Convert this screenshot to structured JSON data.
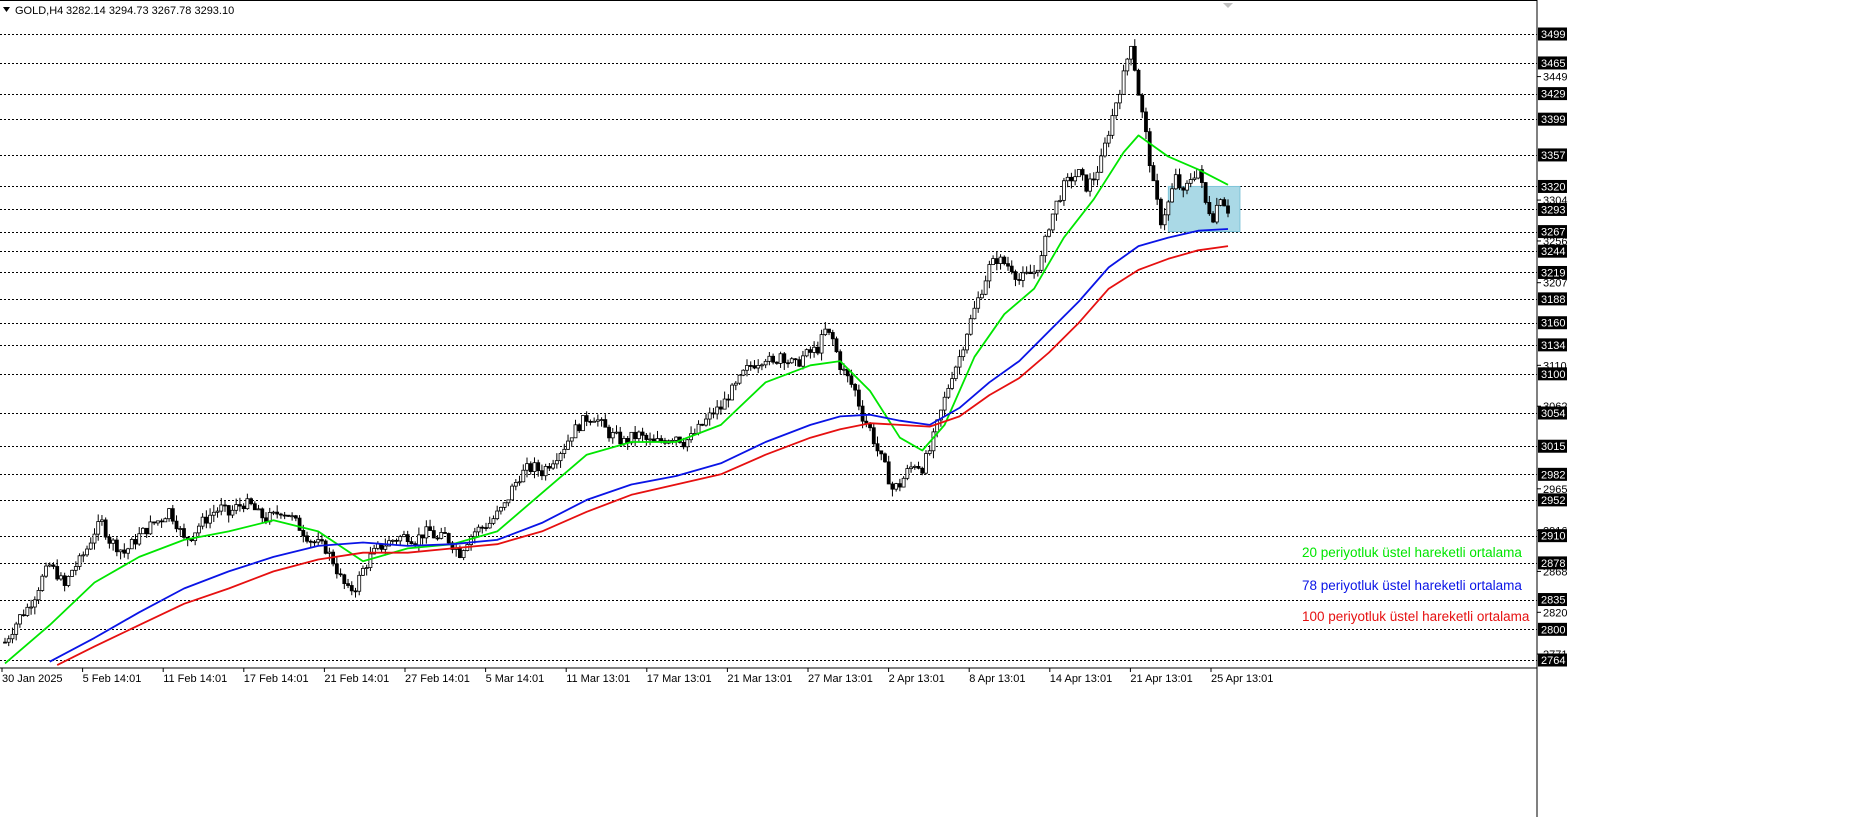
{
  "header": {
    "symbol": "GOLD,H4",
    "ohlc": "3282.14 3294.73 3267.78 3293.10"
  },
  "legend": [
    {
      "label": "20 periyotluk üstel hareketli ortalama",
      "color": "#00e600"
    },
    {
      "label": "78 periyotluk üstel hareketli ortalama",
      "color": "#0a14e6"
    },
    {
      "label": "100 periyotluk üstel hareketli ortalama",
      "color": "#e61010"
    }
  ],
  "colors": {
    "candle": "#000000",
    "hline": "#000000",
    "zone_fill": "#aad9e6",
    "zone_stroke": "#7fc4d8",
    "label_bg": "#000000",
    "label_text": "#ffffff"
  },
  "chart_data": {
    "type": "candlestick",
    "symbol": "GOLD",
    "timeframe": "H4",
    "ylim": [
      2758,
      3504
    ],
    "grid": false,
    "price_labels_highlighted": [
      3499,
      3465,
      3429,
      3399,
      3357,
      3320,
      3293,
      3267,
      3244,
      3219,
      3188,
      3160,
      3134,
      3100,
      3054,
      3015,
      2982,
      2952,
      2910,
      2878,
      2835,
      2800,
      2764
    ],
    "price_labels_plain": [
      3449,
      3304,
      3256,
      3207,
      3110,
      3062,
      2965,
      2916,
      2868,
      2820,
      2771
    ],
    "horizontal_levels": [
      3499,
      3465,
      3429,
      3399,
      3357,
      3320,
      3293,
      3267,
      3244,
      3219,
      3188,
      3160,
      3134,
      3100,
      3054,
      3015,
      2982,
      2952,
      2910,
      2878,
      2835,
      2800,
      2764
    ],
    "x_tick_labels": [
      "30 Jan 2025",
      "5 Feb 14:01",
      "11 Feb 14:01",
      "17 Feb 14:01",
      "21 Feb 14:01",
      "27 Feb 14:01",
      "5 Mar 14:01",
      "11 Mar 13:01",
      "17 Mar 13:01",
      "21 Mar 13:01",
      "27 Mar 13:01",
      "2 Apr 13:01",
      "8 Apr 13:01",
      "14 Apr 13:01",
      "21 Apr 13:01",
      "25 Apr 13:01"
    ],
    "close_path": [
      [
        0,
        2785
      ],
      [
        0.5,
        2800
      ],
      [
        1,
        2815
      ],
      [
        1.5,
        2825
      ],
      [
        2,
        2840
      ],
      [
        2.5,
        2860
      ],
      [
        3,
        2875
      ],
      [
        3.5,
        2865
      ],
      [
        4,
        2850
      ],
      [
        4.5,
        2870
      ],
      [
        5,
        2880
      ],
      [
        5.5,
        2895
      ],
      [
        6,
        2915
      ],
      [
        6.5,
        2925
      ],
      [
        7,
        2905
      ],
      [
        7.5,
        2898
      ],
      [
        8,
        2890
      ],
      [
        8.5,
        2900
      ],
      [
        9,
        2910
      ],
      [
        9.5,
        2918
      ],
      [
        10,
        2925
      ],
      [
        10.5,
        2930
      ],
      [
        11,
        2940
      ],
      [
        11.5,
        2925
      ],
      [
        12,
        2905
      ],
      [
        12.5,
        2910
      ],
      [
        13,
        2922
      ],
      [
        13.5,
        2930
      ],
      [
        14,
        2938
      ],
      [
        14.5,
        2942
      ],
      [
        15,
        2935
      ],
      [
        15.5,
        2943
      ],
      [
        16,
        2948
      ],
      [
        16.5,
        2945
      ],
      [
        17,
        2935
      ],
      [
        17.5,
        2930
      ],
      [
        18,
        2933
      ],
      [
        18.5,
        2940
      ],
      [
        19,
        2935
      ],
      [
        19.5,
        2925
      ],
      [
        20,
        2915
      ],
      [
        20.5,
        2905
      ],
      [
        21,
        2900
      ],
      [
        21.5,
        2895
      ],
      [
        22,
        2880
      ],
      [
        22.5,
        2860
      ],
      [
        23,
        2845
      ],
      [
        23.5,
        2850
      ],
      [
        24,
        2870
      ],
      [
        24.5,
        2885
      ],
      [
        25,
        2895
      ],
      [
        25.5,
        2900
      ],
      [
        26,
        2905
      ],
      [
        26.5,
        2908
      ],
      [
        27,
        2910
      ],
      [
        27.5,
        2905
      ],
      [
        28,
        2912
      ],
      [
        28.5,
        2915
      ],
      [
        29,
        2905
      ],
      [
        29.5,
        2910
      ],
      [
        30,
        2900
      ],
      [
        30.5,
        2890
      ],
      [
        31,
        2905
      ],
      [
        31.5,
        2915
      ],
      [
        32,
        2920
      ],
      [
        32.5,
        2925
      ],
      [
        33,
        2935
      ],
      [
        33.5,
        2945
      ],
      [
        34,
        2965
      ],
      [
        34.5,
        2980
      ],
      [
        35,
        2988
      ],
      [
        35.5,
        2990
      ],
      [
        36,
        2985
      ],
      [
        36.5,
        2995
      ],
      [
        37,
        3005
      ],
      [
        37.5,
        3015
      ],
      [
        38,
        3030
      ],
      [
        38.5,
        3040
      ],
      [
        39,
        3048
      ],
      [
        39.5,
        3050
      ],
      [
        40,
        3040
      ],
      [
        40.5,
        3030
      ],
      [
        41,
        3025
      ],
      [
        41.5,
        3020
      ],
      [
        42,
        3025
      ],
      [
        42.5,
        3028
      ],
      [
        43,
        3022
      ],
      [
        43.5,
        3018
      ],
      [
        44,
        3022
      ],
      [
        44.5,
        3025
      ],
      [
        45,
        3028
      ],
      [
        45.5,
        3020
      ],
      [
        46,
        3025
      ],
      [
        46.5,
        3035
      ],
      [
        47,
        3045
      ],
      [
        47.5,
        3055
      ],
      [
        48,
        3060
      ],
      [
        48.5,
        3075
      ],
      [
        49,
        3085
      ],
      [
        49.5,
        3100
      ],
      [
        50,
        3110
      ],
      [
        50.5,
        3115
      ],
      [
        51,
        3120
      ],
      [
        51.5,
        3110
      ],
      [
        52,
        3125
      ],
      [
        52.5,
        3115
      ],
      [
        53,
        3110
      ],
      [
        53.5,
        3120
      ],
      [
        54,
        3125
      ],
      [
        54.5,
        3130
      ],
      [
        55,
        3150
      ],
      [
        55.5,
        3140
      ],
      [
        56,
        3110
      ],
      [
        56.5,
        3095
      ],
      [
        57,
        3080
      ],
      [
        57.5,
        3050
      ],
      [
        58,
        3035
      ],
      [
        58.5,
        3010
      ],
      [
        59,
        2990
      ],
      [
        59.5,
        2965
      ],
      [
        60,
        2970
      ],
      [
        60.5,
        2985
      ],
      [
        61,
        2995
      ],
      [
        61.5,
        2990
      ],
      [
        62,
        3010
      ],
      [
        62.5,
        3040
      ],
      [
        63,
        3070
      ],
      [
        63.5,
        3100
      ],
      [
        64,
        3120
      ],
      [
        64.5,
        3150
      ],
      [
        65,
        3175
      ],
      [
        65.5,
        3200
      ],
      [
        66,
        3225
      ],
      [
        66.5,
        3235
      ],
      [
        67,
        3230
      ],
      [
        67.5,
        3225
      ],
      [
        68,
        3210
      ],
      [
        68.5,
        3215
      ],
      [
        69,
        3220
      ],
      [
        69.5,
        3235
      ],
      [
        70,
        3275
      ],
      [
        70.5,
        3300
      ],
      [
        71,
        3320
      ],
      [
        71.5,
        3330
      ],
      [
        72,
        3335
      ],
      [
        72.5,
        3320
      ],
      [
        73,
        3330
      ],
      [
        73.5,
        3350
      ],
      [
        74,
        3385
      ],
      [
        74.5,
        3420
      ],
      [
        75,
        3450
      ],
      [
        75.5,
        3490
      ],
      [
        76,
        3430
      ],
      [
        76.5,
        3380
      ],
      [
        77,
        3320
      ],
      [
        77.5,
        3280
      ],
      [
        78,
        3300
      ],
      [
        78.5,
        3330
      ],
      [
        79,
        3310
      ],
      [
        79.5,
        3330
      ],
      [
        80,
        3340
      ],
      [
        80.5,
        3300
      ],
      [
        81,
        3285
      ],
      [
        81.5,
        3310
      ],
      [
        82,
        3293
      ]
    ],
    "series": [
      {
        "name": "20 periyotluk üstel hareketli ortalama",
        "color": "#00e600",
        "points": [
          [
            0,
            2760
          ],
          [
            3,
            2805
          ],
          [
            6,
            2855
          ],
          [
            9,
            2885
          ],
          [
            12,
            2905
          ],
          [
            15,
            2915
          ],
          [
            18,
            2928
          ],
          [
            21,
            2915
          ],
          [
            24,
            2880
          ],
          [
            27,
            2895
          ],
          [
            30,
            2900
          ],
          [
            33,
            2915
          ],
          [
            36,
            2960
          ],
          [
            39,
            3005
          ],
          [
            42,
            3020
          ],
          [
            45,
            3020
          ],
          [
            48,
            3040
          ],
          [
            51,
            3090
          ],
          [
            54,
            3110
          ],
          [
            56,
            3115
          ],
          [
            58,
            3080
          ],
          [
            60,
            3025
          ],
          [
            61.5,
            3010
          ],
          [
            63,
            3040
          ],
          [
            65,
            3120
          ],
          [
            67,
            3170
          ],
          [
            69,
            3200
          ],
          [
            71,
            3260
          ],
          [
            73,
            3305
          ],
          [
            75,
            3360
          ],
          [
            76,
            3380
          ],
          [
            78,
            3355
          ],
          [
            80,
            3340
          ],
          [
            82,
            3322
          ]
        ]
      },
      {
        "name": "78 periyotluk üstel hareketli ortalama",
        "color": "#0a14e6",
        "points": [
          [
            3,
            2762
          ],
          [
            6,
            2790
          ],
          [
            9,
            2820
          ],
          [
            12,
            2848
          ],
          [
            15,
            2868
          ],
          [
            18,
            2885
          ],
          [
            21,
            2898
          ],
          [
            24,
            2902
          ],
          [
            27,
            2898
          ],
          [
            30,
            2900
          ],
          [
            33,
            2905
          ],
          [
            36,
            2925
          ],
          [
            39,
            2952
          ],
          [
            42,
            2970
          ],
          [
            45,
            2980
          ],
          [
            48,
            2995
          ],
          [
            51,
            3020
          ],
          [
            54,
            3040
          ],
          [
            56,
            3050
          ],
          [
            58,
            3052
          ],
          [
            60,
            3045
          ],
          [
            62,
            3040
          ],
          [
            64,
            3060
          ],
          [
            66,
            3090
          ],
          [
            68,
            3115
          ],
          [
            70,
            3150
          ],
          [
            72,
            3185
          ],
          [
            74,
            3225
          ],
          [
            76,
            3250
          ],
          [
            78,
            3260
          ],
          [
            80,
            3268
          ],
          [
            82,
            3270
          ]
        ]
      },
      {
        "name": "100 periyotluk üstel hareketli ortalama",
        "color": "#e61010",
        "points": [
          [
            3.5,
            2758
          ],
          [
            6,
            2780
          ],
          [
            9,
            2805
          ],
          [
            12,
            2830
          ],
          [
            15,
            2848
          ],
          [
            18,
            2868
          ],
          [
            21,
            2882
          ],
          [
            24,
            2890
          ],
          [
            27,
            2890
          ],
          [
            30,
            2895
          ],
          [
            33,
            2900
          ],
          [
            36,
            2915
          ],
          [
            39,
            2938
          ],
          [
            42,
            2958
          ],
          [
            45,
            2970
          ],
          [
            48,
            2982
          ],
          [
            51,
            3005
          ],
          [
            54,
            3025
          ],
          [
            56,
            3035
          ],
          [
            58,
            3042
          ],
          [
            60,
            3040
          ],
          [
            62,
            3038
          ],
          [
            64,
            3050
          ],
          [
            66,
            3075
          ],
          [
            68,
            3095
          ],
          [
            70,
            3125
          ],
          [
            72,
            3160
          ],
          [
            74,
            3200
          ],
          [
            76,
            3222
          ],
          [
            78,
            3235
          ],
          [
            80,
            3245
          ],
          [
            82,
            3250
          ]
        ]
      }
    ],
    "highlight_zone": {
      "x0": 78,
      "x1": 82.8,
      "y0": 3267,
      "y1": 3320
    }
  }
}
